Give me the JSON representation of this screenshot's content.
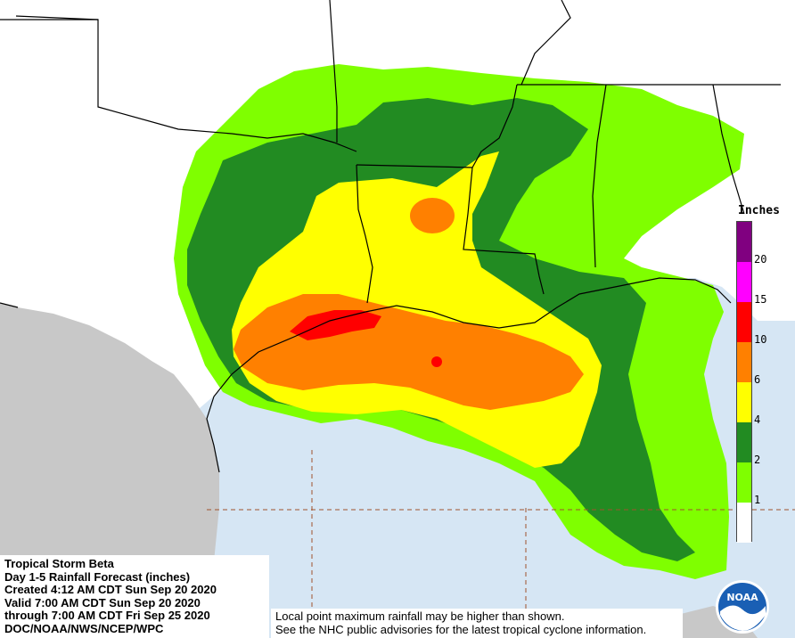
{
  "legend": {
    "title": "Inches",
    "classes": [
      {
        "label": "1",
        "color": "#ffffff"
      },
      {
        "label": "2",
        "color": "#7fff00"
      },
      {
        "label": "4",
        "color": "#228b22"
      },
      {
        "label": "6",
        "color": "#ffff00"
      },
      {
        "label": "10",
        "color": "#ff8000"
      },
      {
        "label": "15",
        "color": "#ff0000"
      },
      {
        "label": "20",
        "color": "#ff00ff"
      },
      {
        "label": "",
        "color": "#800080"
      }
    ]
  },
  "info": {
    "storm": "Tropical Storm Beta",
    "product": "Day 1-5 Rainfall Forecast (inches)",
    "created": "Created 4:12 AM CDT Sun Sep 20 2020",
    "valid": "Valid 7:00 AM CDT Sun Sep 20 2020",
    "through": "through 7:00 AM CDT Fri Sep 25 2020",
    "agency": "DOC/NOAA/NWS/NCEP/WPC"
  },
  "note": {
    "line1": "Local point maximum rainfall may be higher than shown.",
    "line2": "See the NHC public advisories for the latest tropical cyclone information."
  },
  "logo": {
    "text": "NOAA"
  },
  "colors": {
    "land": "#ffffff",
    "mexico": "#c8c8c8",
    "gulf": "#d6e6f4",
    "boundary": "#000000",
    "grid": "#a0522d"
  }
}
